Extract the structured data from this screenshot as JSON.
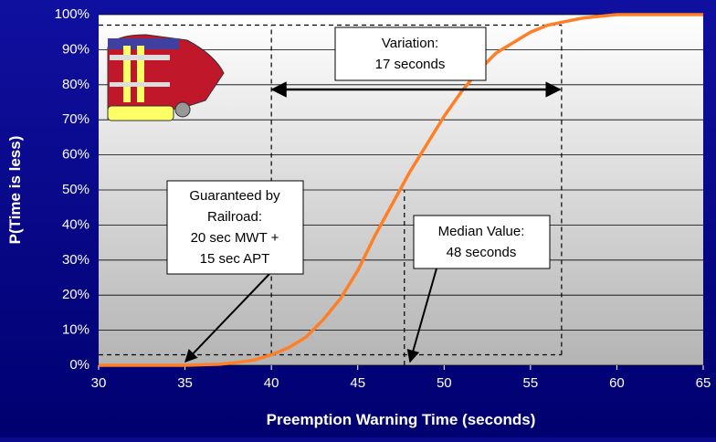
{
  "chart_data": {
    "type": "line",
    "x_label": "Preemption Warning Time (seconds)",
    "y_label": "P(Time is less)",
    "x": [
      30,
      35,
      37,
      38,
      39,
      40,
      41,
      42,
      43,
      44,
      45,
      46,
      47,
      48,
      49,
      50,
      51,
      52,
      53,
      54,
      55,
      56,
      57,
      58,
      59,
      60,
      65
    ],
    "series": [
      {
        "color": "#ff7f27",
        "values": [
          0,
          0,
          0.3,
          0.8,
          1.5,
          3,
          5,
          8,
          13,
          19,
          27,
          37,
          46,
          55,
          63,
          71,
          78,
          84,
          89,
          92,
          95,
          97,
          98,
          99,
          99.5,
          100,
          100
        ]
      }
    ],
    "xlim": [
      30,
      65
    ],
    "xticks": [
      30,
      35,
      40,
      45,
      50,
      55,
      60,
      65
    ],
    "ylim": [
      0,
      100
    ],
    "yticks": [
      {
        "value": 0,
        "label": "0%"
      },
      {
        "value": 10,
        "label": "10%"
      },
      {
        "value": 20,
        "label": "20%"
      },
      {
        "value": 30,
        "label": "30%"
      },
      {
        "value": 40,
        "label": "40%"
      },
      {
        "value": 50,
        "label": "50%"
      },
      {
        "value": 60,
        "label": "60%"
      },
      {
        "value": 70,
        "label": "70%"
      },
      {
        "value": 80,
        "label": "80%"
      },
      {
        "value": 90,
        "label": "90%"
      },
      {
        "value": {
          "value": 100,
          "label": "100%"
        },
        "label": "100%"
      }
    ],
    "grid": true,
    "reference_lines": [
      {
        "x": [
          40,
          40
        ],
        "y": [
          3,
          97
        ]
      },
      {
        "x": [
          47.7,
          47.7
        ],
        "y": [
          0,
          50
        ]
      },
      {
        "x": [
          56.8,
          56.8
        ],
        "y": [
          3,
          97
        ]
      },
      {
        "x": [
          30,
          56.8
        ],
        "y": [
          3,
          3
        ]
      },
      {
        "x": [
          30,
          56.8
        ],
        "y": [
          97,
          97
        ]
      }
    ],
    "annotations": {
      "variation": [
        "Variation:",
        "17 seconds"
      ],
      "guaranteed": [
        "Guaranteed by",
        "Railroad:",
        "20 sec MWT +",
        "15 sec APT"
      ],
      "median": [
        "Median Value:",
        "48 seconds"
      ]
    }
  }
}
